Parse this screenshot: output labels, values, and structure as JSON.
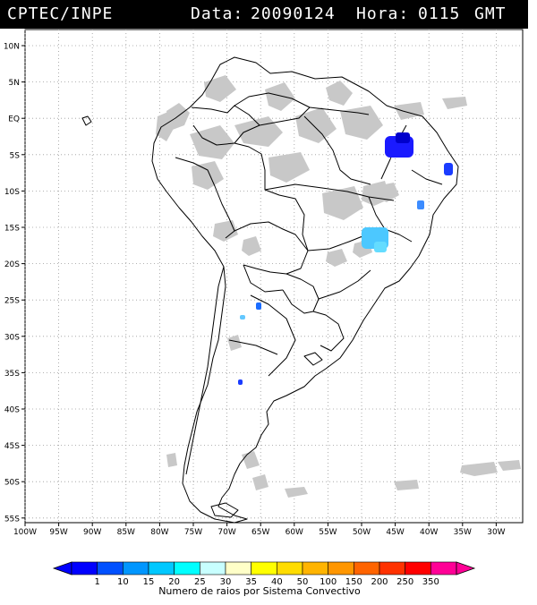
{
  "header": {
    "source": "CPTEC/INPE",
    "date_label": "Data:",
    "date_value": "20090124",
    "time_label": "Hora:",
    "time_value": "0115",
    "timezone": "GMT"
  },
  "map": {
    "lat_labels": [
      "10N",
      "5N",
      "EQ",
      "5S",
      "10S",
      "15S",
      "20S",
      "25S",
      "30S",
      "35S",
      "40S",
      "45S",
      "50S",
      "55S"
    ],
    "lon_labels": [
      "100W",
      "95W",
      "90W",
      "85W",
      "80W",
      "75W",
      "70W",
      "65W",
      "60W",
      "55W",
      "50W",
      "45W",
      "40W",
      "35W",
      "30W"
    ],
    "land_color": "#ffffff",
    "cloud_color": "#c8c8c8",
    "border_color": "#000000",
    "grid_color": "#9a9a9a"
  },
  "colorbar": {
    "title": "Numero de raios por Sistema Convectivo",
    "tick_labels": [
      "1",
      "10",
      "15",
      "20",
      "25",
      "30",
      "35",
      "40",
      "50",
      "100",
      "150",
      "200",
      "250",
      "350"
    ],
    "colors": [
      "#0000ff",
      "#0050ff",
      "#0096ff",
      "#00c8ff",
      "#00ffff",
      "#c8ffff",
      "#ffffc8",
      "#ffff00",
      "#ffdc00",
      "#ffb400",
      "#ff9600",
      "#ff6400",
      "#ff3200",
      "#ff0000",
      "#ff0096"
    ]
  }
}
